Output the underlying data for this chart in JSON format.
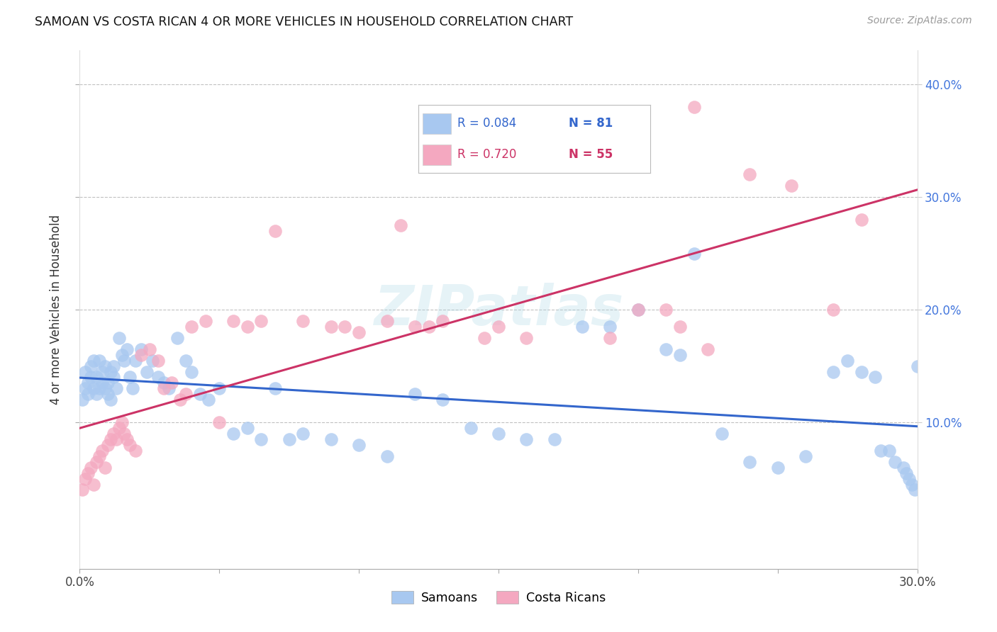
{
  "title": "SAMOAN VS COSTA RICAN 4 OR MORE VEHICLES IN HOUSEHOLD CORRELATION CHART",
  "source": "Source: ZipAtlas.com",
  "ylabel": "4 or more Vehicles in Household",
  "xmin": 0.0,
  "xmax": 0.3,
  "ymin": -0.03,
  "ymax": 0.43,
  "xticks": [
    0.0,
    0.05,
    0.1,
    0.15,
    0.2,
    0.25,
    0.3
  ],
  "yticks": [
    0.1,
    0.2,
    0.3,
    0.4
  ],
  "blue_R": 0.084,
  "blue_N": 81,
  "pink_R": 0.72,
  "pink_N": 55,
  "blue_color": "#A8C8F0",
  "pink_color": "#F4A8C0",
  "blue_line_color": "#3366CC",
  "pink_line_color": "#CC3366",
  "watermark": "ZIPatlas",
  "legend_label_blue": "Samoans",
  "legend_label_pink": "Costa Ricans",
  "blue_points_x": [
    0.001,
    0.002,
    0.002,
    0.003,
    0.003,
    0.004,
    0.004,
    0.005,
    0.005,
    0.006,
    0.006,
    0.007,
    0.007,
    0.008,
    0.008,
    0.009,
    0.009,
    0.01,
    0.01,
    0.011,
    0.011,
    0.012,
    0.012,
    0.013,
    0.014,
    0.015,
    0.016,
    0.017,
    0.018,
    0.019,
    0.02,
    0.022,
    0.024,
    0.026,
    0.028,
    0.03,
    0.032,
    0.035,
    0.038,
    0.04,
    0.043,
    0.046,
    0.05,
    0.055,
    0.06,
    0.065,
    0.07,
    0.075,
    0.08,
    0.09,
    0.1,
    0.11,
    0.12,
    0.13,
    0.14,
    0.15,
    0.16,
    0.17,
    0.18,
    0.19,
    0.2,
    0.21,
    0.215,
    0.22,
    0.23,
    0.24,
    0.25,
    0.26,
    0.27,
    0.275,
    0.28,
    0.285,
    0.287,
    0.29,
    0.292,
    0.295,
    0.296,
    0.297,
    0.298,
    0.299,
    0.3
  ],
  "blue_points_y": [
    0.12,
    0.13,
    0.145,
    0.125,
    0.135,
    0.14,
    0.15,
    0.13,
    0.155,
    0.125,
    0.14,
    0.13,
    0.155,
    0.135,
    0.145,
    0.13,
    0.15,
    0.135,
    0.125,
    0.145,
    0.12,
    0.14,
    0.15,
    0.13,
    0.175,
    0.16,
    0.155,
    0.165,
    0.14,
    0.13,
    0.155,
    0.165,
    0.145,
    0.155,
    0.14,
    0.135,
    0.13,
    0.175,
    0.155,
    0.145,
    0.125,
    0.12,
    0.13,
    0.09,
    0.095,
    0.085,
    0.13,
    0.085,
    0.09,
    0.085,
    0.08,
    0.07,
    0.125,
    0.12,
    0.095,
    0.09,
    0.085,
    0.085,
    0.185,
    0.185,
    0.2,
    0.165,
    0.16,
    0.25,
    0.09,
    0.065,
    0.06,
    0.07,
    0.145,
    0.155,
    0.145,
    0.14,
    0.075,
    0.075,
    0.065,
    0.06,
    0.055,
    0.05,
    0.045,
    0.04,
    0.15
  ],
  "pink_points_x": [
    0.001,
    0.002,
    0.003,
    0.004,
    0.005,
    0.006,
    0.007,
    0.008,
    0.009,
    0.01,
    0.011,
    0.012,
    0.013,
    0.014,
    0.015,
    0.016,
    0.017,
    0.018,
    0.02,
    0.022,
    0.025,
    0.028,
    0.03,
    0.033,
    0.036,
    0.038,
    0.04,
    0.045,
    0.05,
    0.055,
    0.06,
    0.065,
    0.07,
    0.08,
    0.09,
    0.095,
    0.1,
    0.11,
    0.115,
    0.12,
    0.125,
    0.13,
    0.145,
    0.15,
    0.16,
    0.19,
    0.2,
    0.21,
    0.215,
    0.22,
    0.225,
    0.24,
    0.255,
    0.27,
    0.28
  ],
  "pink_points_y": [
    0.04,
    0.05,
    0.055,
    0.06,
    0.045,
    0.065,
    0.07,
    0.075,
    0.06,
    0.08,
    0.085,
    0.09,
    0.085,
    0.095,
    0.1,
    0.09,
    0.085,
    0.08,
    0.075,
    0.16,
    0.165,
    0.155,
    0.13,
    0.135,
    0.12,
    0.125,
    0.185,
    0.19,
    0.1,
    0.19,
    0.185,
    0.19,
    0.27,
    0.19,
    0.185,
    0.185,
    0.18,
    0.19,
    0.275,
    0.185,
    0.185,
    0.19,
    0.175,
    0.185,
    0.175,
    0.175,
    0.2,
    0.2,
    0.185,
    0.38,
    0.165,
    0.32,
    0.31,
    0.2,
    0.28
  ]
}
